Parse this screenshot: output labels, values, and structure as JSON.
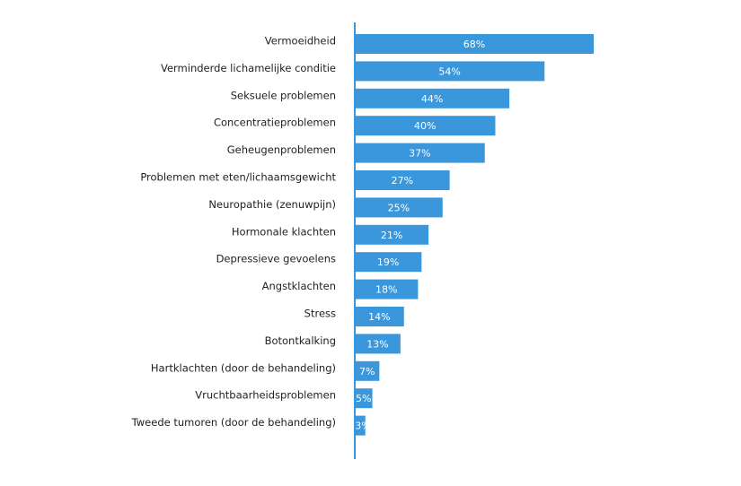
{
  "chart_data": {
    "type": "bar",
    "orientation": "horizontal",
    "color": "#3a97dc",
    "categories": [
      "Vermoeidheid",
      "Verminderde lichamelijke conditie",
      "Seksuele problemen",
      "Concentratieproblemen",
      "Geheugenproblemen",
      "Problemen met eten/lichaamsgewicht",
      "Neuropathie (zenuwpijn)",
      "Hormonale klachten",
      "Depressieve gevoelens",
      "Angstklachten",
      "Stress",
      "Botontkalking",
      "Hartklachten (door de behandeling)",
      "Vruchtbaarheidsproblemen",
      "Tweede tumoren (door de behandeling)"
    ],
    "values": [
      68,
      54,
      44,
      40,
      37,
      27,
      25,
      21,
      19,
      18,
      14,
      13,
      7,
      5,
      3
    ],
    "value_labels": [
      "68%",
      "54%",
      "44%",
      "40%",
      "37%",
      "27%",
      "25%",
      "21%",
      "19%",
      "18%",
      "14%",
      "13%",
      "7%",
      "5%",
      "3%"
    ]
  }
}
